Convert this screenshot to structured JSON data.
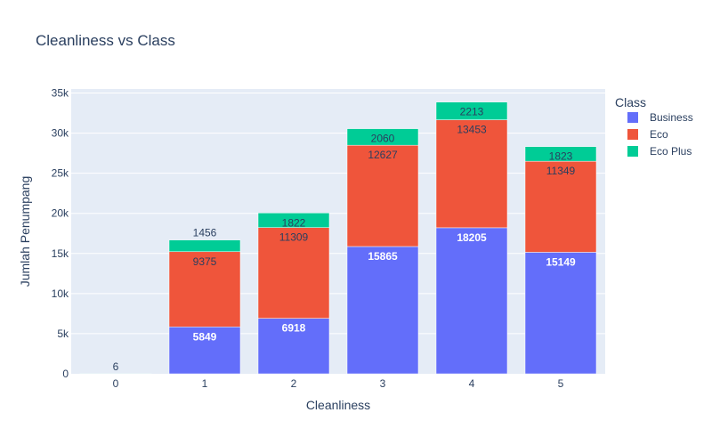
{
  "chart_data": {
    "type": "bar",
    "stacked": true,
    "title": "Cleanliness vs Class",
    "xlabel": "Cleanliness",
    "ylabel": "Jumlah Penumpang",
    "categories": [
      "0",
      "1",
      "2",
      "3",
      "4",
      "5"
    ],
    "ylim": [
      0,
      35500
    ],
    "yticks": [
      0,
      5000,
      10000,
      15000,
      20000,
      25000,
      30000,
      35000
    ],
    "ytick_labels": [
      "0",
      "5k",
      "10k",
      "15k",
      "20k",
      "25k",
      "30k",
      "35k"
    ],
    "grid": true,
    "legend_title": "Class",
    "legend_position": "top-right",
    "series": [
      {
        "name": "Business",
        "color": "#636efa",
        "values": [
          0,
          5849,
          6918,
          15865,
          18205,
          15149
        ]
      },
      {
        "name": "Eco",
        "color": "#ef553b",
        "values": [
          0,
          9375,
          11309,
          12627,
          13453,
          11349
        ]
      },
      {
        "name": "Eco Plus",
        "color": "#00cc96",
        "values": [
          6,
          1456,
          1822,
          2060,
          2213,
          1823
        ]
      }
    ]
  }
}
